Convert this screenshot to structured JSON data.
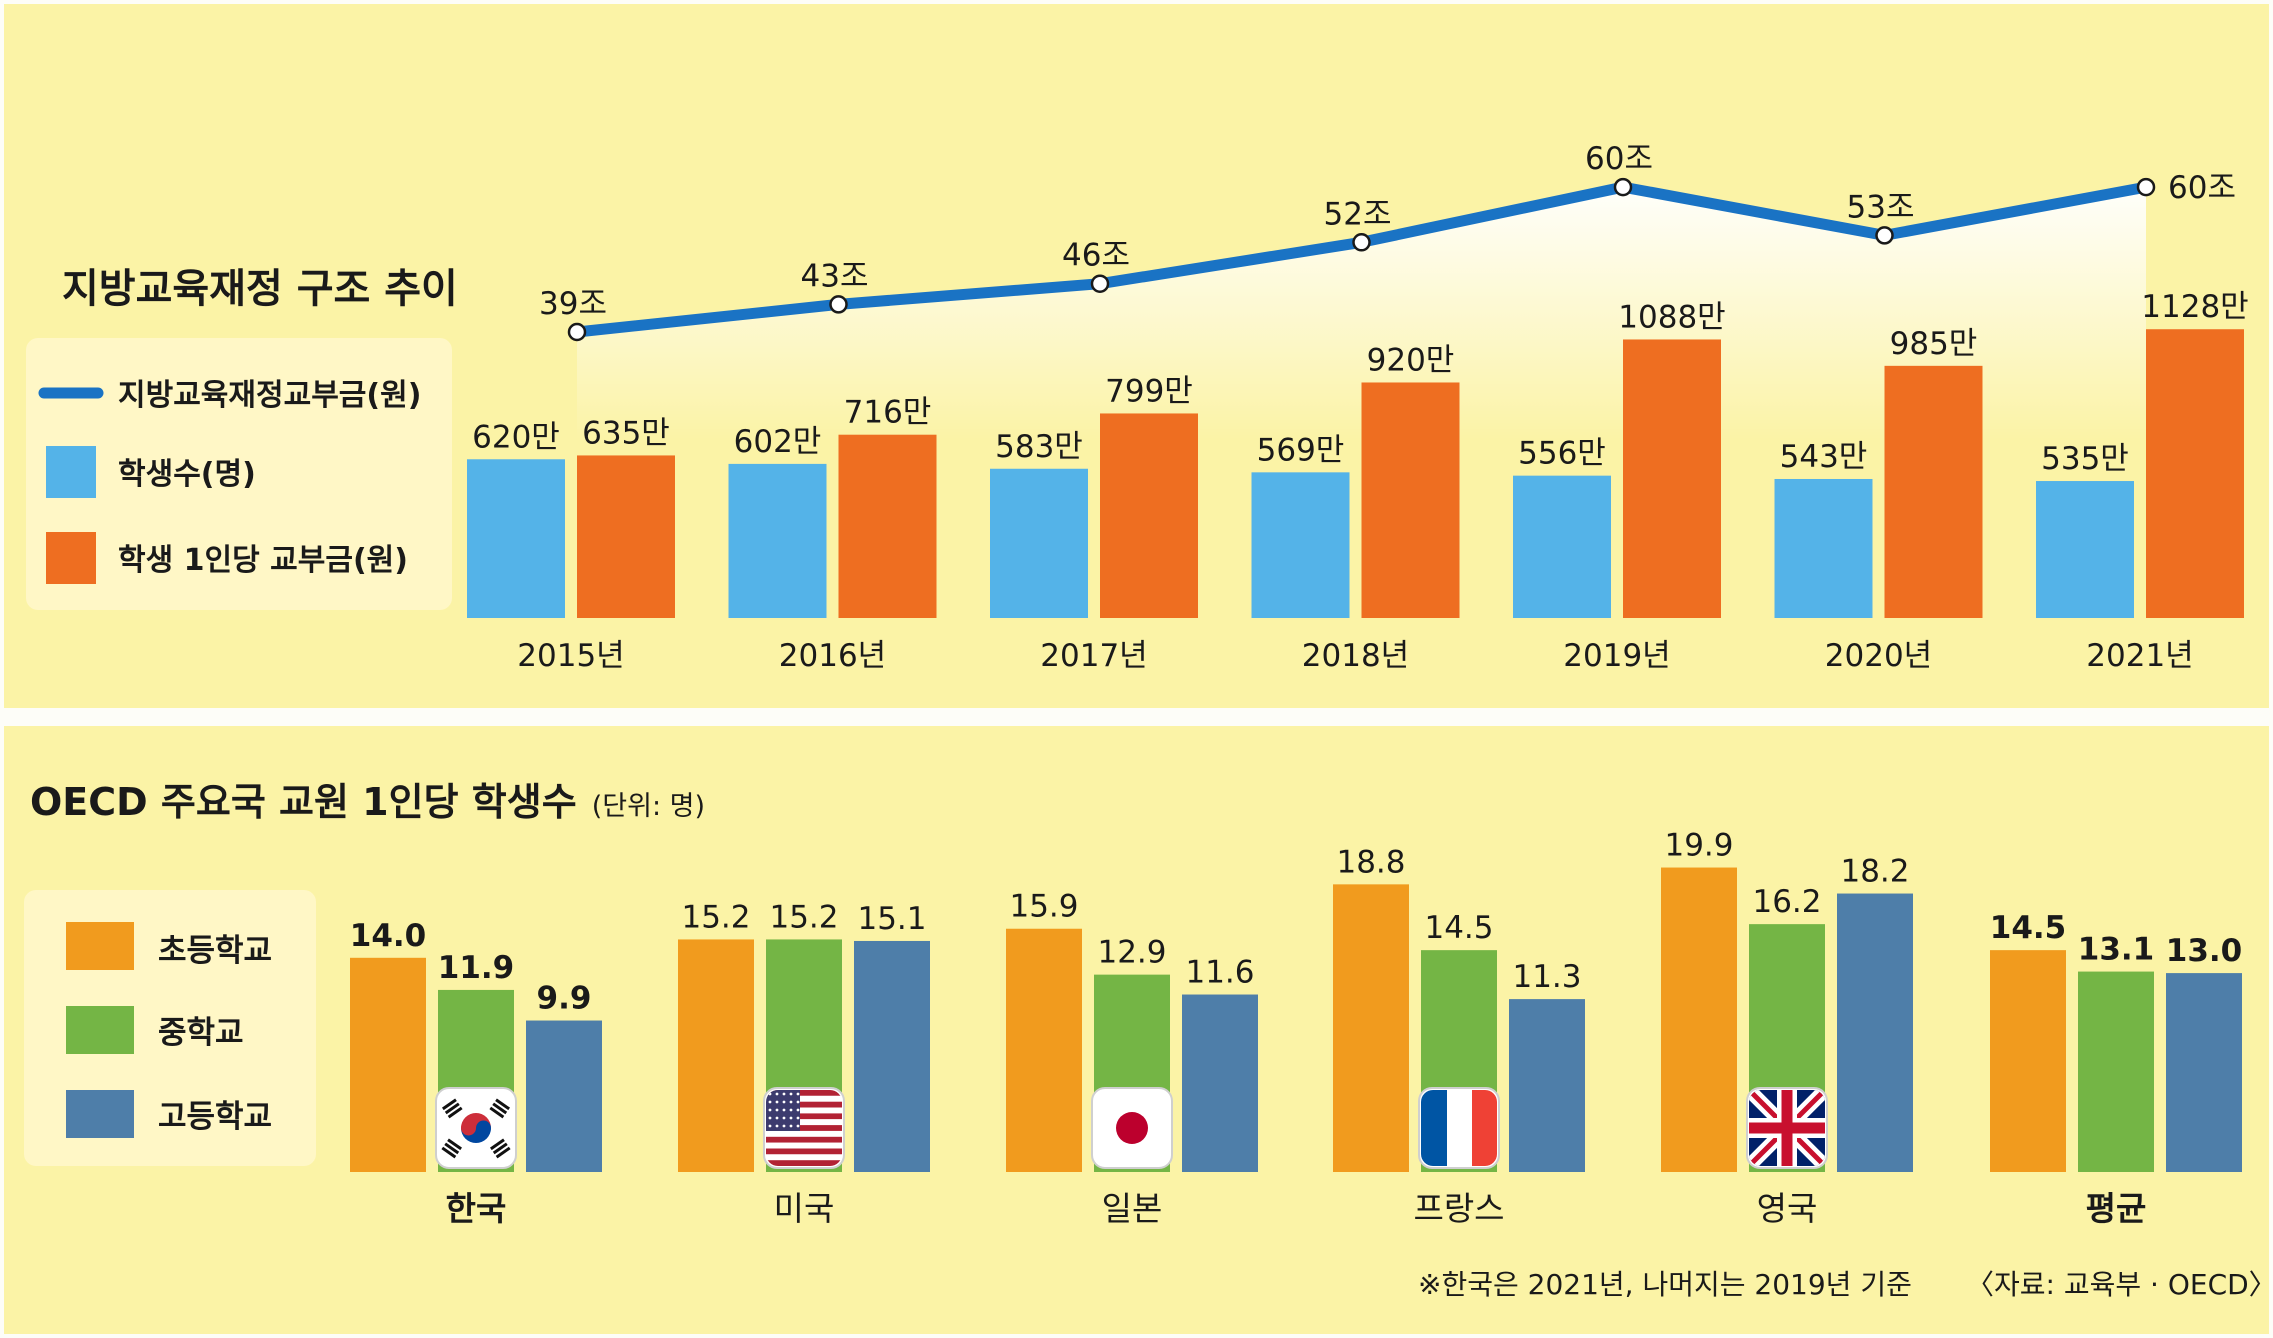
{
  "chart_data": [
    {
      "type": "bar+line",
      "title": "지방교육재정 구조 추이",
      "legend": [
        {
          "label": "지방교육재정교부금(원)",
          "color": "#1a73c4",
          "kind": "line"
        },
        {
          "label": "학생수(명)",
          "color": "#54b3e8",
          "kind": "bar"
        },
        {
          "label": "학생 1인당 교부금(원)",
          "color": "#ee6e21",
          "kind": "bar"
        }
      ],
      "categories": [
        "2015년",
        "2016년",
        "2017년",
        "2018년",
        "2019년",
        "2020년",
        "2021년"
      ],
      "line_series": {
        "name": "지방교육재정교부금(원)",
        "values": [
          39,
          43,
          46,
          52,
          60,
          53,
          60
        ],
        "labels": [
          "39조",
          "43조",
          "46조",
          "52조",
          "60조",
          "53조",
          "60조"
        ]
      },
      "bar_series": [
        {
          "name": "학생수(명)",
          "values": [
            620,
            602,
            583,
            569,
            556,
            543,
            535
          ],
          "labels": [
            "620만",
            "602만",
            "583만",
            "569만",
            "556만",
            "543만",
            "535만"
          ]
        },
        {
          "name": "학생 1인당 교부금(원)",
          "values": [
            635,
            716,
            799,
            920,
            1088,
            985,
            1128
          ],
          "labels": [
            "635만",
            "716만",
            "799만",
            "920만",
            "1088만",
            "985만",
            "1128만"
          ]
        }
      ]
    },
    {
      "type": "bar",
      "title": "OECD 주요국 교원 1인당 학생수",
      "unit_note": "(단위: 명)",
      "legend": [
        {
          "label": "초등학교",
          "color": "#f19b1e"
        },
        {
          "label": "중학교",
          "color": "#74b545"
        },
        {
          "label": "고등학교",
          "color": "#4e7ea9"
        }
      ],
      "categories": [
        "한국",
        "미국",
        "일본",
        "프랑스",
        "영국",
        "평균"
      ],
      "flags": [
        "korea-flag-icon",
        "usa-flag-icon",
        "japan-flag-icon",
        "france-flag-icon",
        "uk-flag-icon",
        ""
      ],
      "series": [
        {
          "name": "초등학교",
          "values": [
            14.0,
            15.2,
            15.9,
            18.8,
            19.9,
            14.5
          ],
          "labels": [
            "14.0",
            "15.2",
            "15.9",
            "18.8",
            "19.9",
            "14.5"
          ]
        },
        {
          "name": "중학교",
          "values": [
            11.9,
            15.2,
            12.9,
            14.5,
            16.2,
            13.1
          ],
          "labels": [
            "11.9",
            "15.2",
            "12.9",
            "14.5",
            "16.2",
            "13.1"
          ]
        },
        {
          "name": "고등학교",
          "values": [
            9.9,
            15.1,
            11.6,
            11.3,
            18.2,
            13.0
          ],
          "labels": [
            "9.9",
            "15.1",
            "11.6",
            "11.3",
            "18.2",
            "13.0"
          ]
        }
      ],
      "bold_categories": [
        "한국",
        "평균"
      ],
      "footnote": "※한국은 2021년, 나머지는 2019년 기준",
      "source": "〈자료: 교육부 · OECD〉"
    }
  ]
}
